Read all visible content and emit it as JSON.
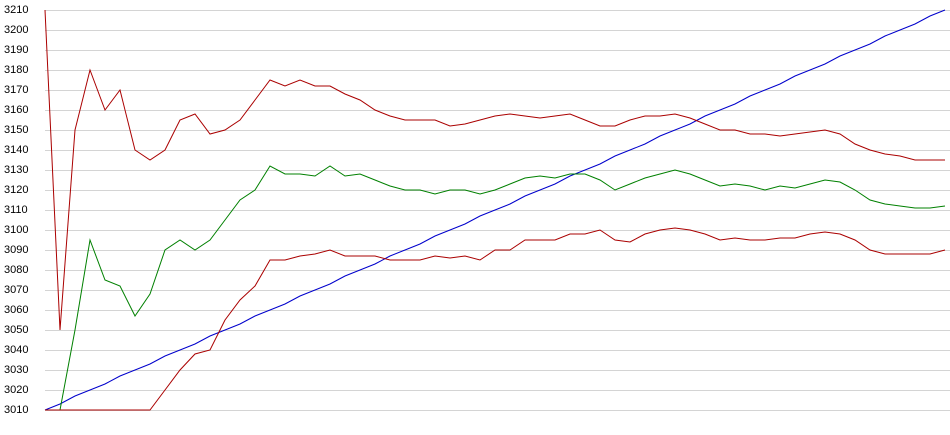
{
  "chart_data": {
    "type": "line",
    "categories": [
      null,
      null,
      null,
      null,
      null,
      null,
      null,
      null,
      null,
      null,
      null,
      null,
      null,
      null,
      null,
      null,
      null,
      null,
      null,
      null,
      null,
      null,
      null,
      null,
      null,
      null,
      null,
      null,
      null,
      null,
      null,
      null,
      null,
      null,
      null,
      null,
      null,
      null,
      null,
      null,
      null,
      null,
      null,
      null,
      null,
      null,
      null,
      null,
      null,
      null,
      null,
      null,
      null,
      null,
      null,
      null,
      null,
      null,
      null,
      null,
      null
    ],
    "ylim": [
      3010,
      3210
    ],
    "yticks": [
      3010,
      3020,
      3030,
      3040,
      3050,
      3060,
      3070,
      3080,
      3090,
      3100,
      3110,
      3120,
      3130,
      3140,
      3150,
      3160,
      3170,
      3180,
      3190,
      3200,
      3210
    ],
    "grid": true,
    "series": [
      {
        "color": "#0000cc",
        "values": [
          3010,
          3013,
          3017,
          3020,
          3023,
          3027,
          3030,
          3033,
          3037,
          3040,
          3043,
          3047,
          3050,
          3053,
          3057,
          3060,
          3063,
          3067,
          3070,
          3073,
          3077,
          3080,
          3083,
          3087,
          3090,
          3093,
          3097,
          3100,
          3103,
          3107,
          3110,
          3113,
          3117,
          3120,
          3123,
          3127,
          3130,
          3133,
          3137,
          3140,
          3143,
          3147,
          3150,
          3153,
          3157,
          3160,
          3163,
          3167,
          3170,
          3173,
          3177,
          3180,
          3183,
          3187,
          3190,
          3193,
          3197,
          3200,
          3203,
          3207,
          3210
        ]
      },
      {
        "color": "#aa0000",
        "values": [
          3210,
          3050,
          3150,
          3180,
          3160,
          3170,
          3140,
          3135,
          3140,
          3155,
          3158,
          3148,
          3150,
          3155,
          3165,
          3175,
          3172,
          3175,
          3172,
          3172,
          3168,
          3165,
          3160,
          3157,
          3155,
          3155,
          3155,
          3152,
          3153,
          3155,
          3157,
          3158,
          3157,
          3156,
          3157,
          3158,
          3155,
          3152,
          3152,
          3155,
          3157,
          3157,
          3158,
          3156,
          3153,
          3150,
          3150,
          3148,
          3148,
          3147,
          3148,
          3149,
          3150,
          3148,
          3143,
          3140,
          3138,
          3137,
          3135,
          3135,
          3135
        ]
      },
      {
        "color": "#008000",
        "values": [
          3010,
          3010,
          3050,
          3095,
          3075,
          3072,
          3057,
          3068,
          3090,
          3095,
          3090,
          3095,
          3105,
          3115,
          3120,
          3132,
          3128,
          3128,
          3127,
          3132,
          3127,
          3128,
          3125,
          3122,
          3120,
          3120,
          3118,
          3120,
          3120,
          3118,
          3120,
          3123,
          3126,
          3127,
          3126,
          3128,
          3128,
          3125,
          3120,
          3123,
          3126,
          3128,
          3130,
          3128,
          3125,
          3122,
          3123,
          3122,
          3120,
          3122,
          3121,
          3123,
          3125,
          3124,
          3120,
          3115,
          3113,
          3112,
          3111,
          3111,
          3112
        ]
      },
      {
        "color": "#aa0000",
        "values": [
          3010,
          3010,
          3010,
          3010,
          3010,
          3010,
          3010,
          3010,
          3020,
          3030,
          3038,
          3040,
          3055,
          3065,
          3072,
          3085,
          3085,
          3087,
          3088,
          3090,
          3087,
          3087,
          3087,
          3085,
          3085,
          3085,
          3087,
          3086,
          3087,
          3085,
          3090,
          3090,
          3095,
          3095,
          3095,
          3098,
          3098,
          3100,
          3095,
          3094,
          3098,
          3100,
          3101,
          3100,
          3098,
          3095,
          3096,
          3095,
          3095,
          3096,
          3096,
          3098,
          3099,
          3098,
          3095,
          3090,
          3088,
          3088,
          3088,
          3088,
          3090
        ]
      }
    ]
  }
}
